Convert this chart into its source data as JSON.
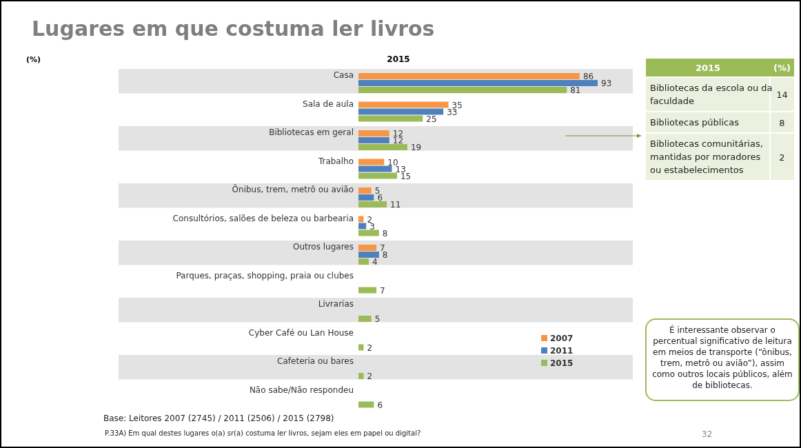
{
  "chart_data": [
    {
      "type": "bar",
      "orientation": "horizontal",
      "title": "Lugares em que costuma ler livros",
      "subtitle": "2015",
      "ylabel": "(%)",
      "categories": [
        "Casa",
        "Sala de aula",
        "Bibliotecas em geral",
        "Trabalho",
        "Ônibus, trem, metrô ou avião",
        "Consultórios, salões de beleza ou barbearia",
        "Outros lugares",
        "Parques, praças, shopping, praia ou clubes",
        "Livrarias",
        "Cyber Café  ou Lan House",
        "Cafeteria ou bares",
        "Não sabe/Não respondeu"
      ],
      "series": [
        {
          "name": "2007",
          "color": "#f79646",
          "values": [
            86,
            35,
            12,
            10,
            5,
            2,
            7,
            null,
            null,
            null,
            null,
            null
          ]
        },
        {
          "name": "2011",
          "color": "#4f81bd",
          "values": [
            93,
            33,
            12,
            13,
            6,
            3,
            8,
            null,
            null,
            null,
            null,
            null
          ]
        },
        {
          "name": "2015",
          "color": "#9bbb59",
          "values": [
            81,
            25,
            19,
            15,
            11,
            8,
            4,
            7,
            5,
            2,
            2,
            6
          ]
        }
      ],
      "data_labels": true,
      "legend": "bottom right",
      "annotations": [
        "É interessante observar o percentual significativo de leitura em meios de transporte (“ônibus, trem, metrô ou avião”), assim como outros locais públicos, além de bibliotecas.",
        "Base: Leitores 2007 (2745) / 2011 (2506) / 2015 (2798)",
        "P.33A) Em qual destes lugares o(a) sr(a) costuma ler livros, sejam eles em papel ou digital?",
        "32"
      ]
    },
    {
      "type": "other",
      "title": "2015",
      "ylabel": "(%)",
      "color": "#9bbb59",
      "categories": [
        "Bibliotecas da escola ou da faculdade",
        "Bibliotecas públicas",
        "Bibliotecas comunitárias, mantidas por moradores ou estabelecimentos"
      ],
      "values": [
        14,
        8,
        2
      ],
      "data_labels": true
    }
  ]
}
